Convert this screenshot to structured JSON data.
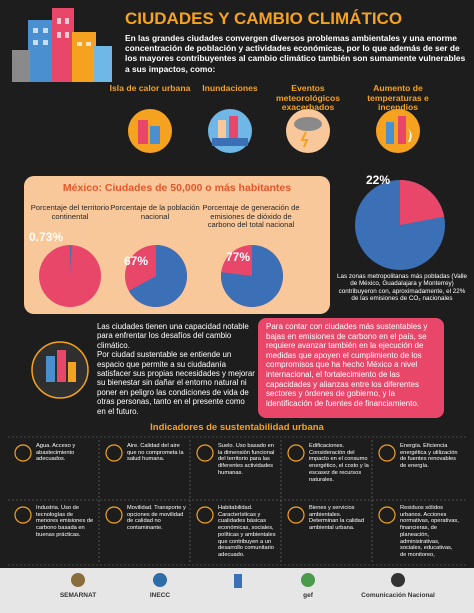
{
  "header": {
    "title": "CIUDADES Y CAMBIO CLIMÁTICO",
    "intro": "En las grandes ciudades convergen diversos problemas ambientales y una enorme concentración de población y actividades económicas, por lo que además de ser de los mayores contribuyentes al cambio climático también son sumamente vulnerables a sus impactos, como:"
  },
  "impacts": [
    "Isla de calor urbana",
    "Inundaciones",
    "Eventos meteorológicos exacerbados",
    "Aumento de temperaturas e incendios"
  ],
  "mexico": {
    "title": "México: Ciudades de 50,000 o más habitantes",
    "pies": [
      {
        "label": "Porcentaje del territorio continental",
        "value": 0.73,
        "value_label": "0.73%"
      },
      {
        "label": "Porcentaje de la población nacional",
        "value": 67,
        "value_label": "67%"
      },
      {
        "label": "Porcentaje de generación de emisiones de dióxido de carbono del total nacional",
        "value": 77,
        "value_label": "77%"
      }
    ]
  },
  "metro": {
    "value": 22,
    "value_label": "22%",
    "caption": "Las zonas metropolitanas más pobladas (Valle de México, Guadalajara y Monterrey) contribuyeron con, aproximadamente, el 22% de las emisiones de CO₂ nacionales"
  },
  "sustainable": {
    "paragraphs": [
      "Las ciudades tienen una capacidad notable para enfrentar los desafíos del cambio climático.",
      "Por ciudad sustentable se entiende un espacio que permite a su ciudadanía satisfacer sus propias necesidades y mejorar su bienestar sin dañar el entorno natural ni poner en peligro las condiciones de vida de otras personas, tanto en el presente como en el futuro."
    ],
    "box": "Para contar con ciudades más sustentables y bajas en emisiones de carbono en el país, se requiere avanzar también en la ejecución de medidas que apoyen el cumplimiento de los compromisos que ha hecho México a nivel internacional, el fortalecimiento de las capacidades y alianzas entre los diferentes sectores y órdenes de gobierno, y la identificación de fuentes de financiamiento."
  },
  "indicators": {
    "title": "Indicadores de sustentabilidad urbana",
    "items": [
      "Agua. Acceso y abastecimiento adecuados.",
      "Aire. Calidad del aire que no comprometa la salud humana.",
      "Suelo. Uso basado en la dimensión funcional del territorio para las diferentes actividades humanas.",
      "Edificaciones. Consideración del impacto en el consumo energético, el costo y la escasez de recursos naturales.",
      "Energía. Eficiencia energética y utilización de fuentes renovables de energía.",
      "Industria. Uso de tecnologías de menores emisiones de carbono basada en buenas prácticas.",
      "Movilidad. Transporte y opciones de movilidad de calidad no contaminante.",
      "Habitabilidad. Características y cualidades básicas económicas, sociales, políticas y ambientales que contribuyen a un desarrollo comunitario adecuado.",
      "Bienes y servicios ambientales. Determinan la calidad ambiental urbana.",
      "Residuos sólidos urbanos. Acciones normativas, operativas, financieras, de planeación, administrativas, sociales, educativas, de monitoreo,"
    ]
  },
  "footer": {
    "logos": [
      "SEMARNAT",
      "INECC",
      "gef",
      "Comunicación Nacional"
    ]
  }
}
